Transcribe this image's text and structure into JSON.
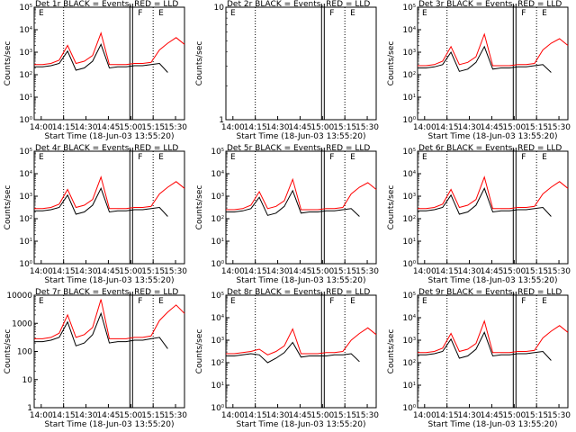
{
  "chart_data": [
    {
      "type": "line",
      "title": "Det 1r BLACK = Events, RED = LLD",
      "ylabel": "Counts/sec",
      "xlabel": "Start Time (18-Jun-03 13:55:20)",
      "xticks": [
        "14:00",
        "14:15",
        "14:30",
        "14:45",
        "15:00",
        "15:15",
        "15:30"
      ],
      "ylim_exp": [
        0,
        5
      ],
      "ytick_labels": [
        "10^0",
        "10^1",
        "10^2",
        "10^3",
        "10^4",
        "10^5"
      ],
      "dotted_x": [
        "14:15",
        "15:15"
      ],
      "solid_x": [
        "15:00"
      ],
      "markers": [
        "E",
        "F",
        "E"
      ],
      "series": [
        {
          "color": "#000000",
          "values": [
            2.35,
            2.35,
            2.4,
            2.5,
            3.05,
            2.2,
            2.3,
            2.6,
            3.35,
            2.3,
            2.35,
            2.35,
            2.4,
            2.4,
            2.45,
            2.5,
            2.1
          ]
        },
        {
          "color": "#ff0000",
          "values": [
            2.45,
            2.45,
            2.5,
            2.65,
            3.3,
            2.5,
            2.6,
            2.85,
            3.85,
            2.45,
            2.45,
            2.45,
            2.5,
            2.5,
            2.55,
            3.1,
            3.4,
            3.65,
            3.35
          ]
        }
      ]
    },
    {
      "type": "line",
      "title": "Det 2r BLACK = Events, RED = LLD",
      "ylabel": "Counts/sec",
      "xlabel": "Start Time (18-Jun-03 13:55:20)",
      "xticks": [
        "14:00",
        "14:15",
        "14:30",
        "14:45",
        "15:00",
        "15:15",
        "15:30"
      ],
      "ylim_exp": [
        0,
        1
      ],
      "ytick_labels": [
        "1",
        "10"
      ],
      "dotted_x": [
        "14:15",
        "15:15"
      ],
      "solid_x": [
        "15:00"
      ],
      "markers": [
        "E",
        "F",
        "E"
      ],
      "series": []
    },
    {
      "type": "line",
      "title": "Det 3r BLACK = Events, RED = LLD",
      "ylabel": "Counts/sec",
      "xlabel": "Start Time (18-Jun-03 13:55:20)",
      "xticks": [
        "14:00",
        "14:15",
        "14:30",
        "14:45",
        "15:00",
        "15:15",
        "15:30"
      ],
      "ylim_exp": [
        0,
        5
      ],
      "ytick_labels": [
        "10^0",
        "10^1",
        "10^2",
        "10^3",
        "10^4",
        "10^5"
      ],
      "dotted_x": [
        "14:15",
        "15:15"
      ],
      "solid_x": [
        "15:00"
      ],
      "markers": [
        "E",
        "F",
        "E"
      ],
      "series": [
        {
          "color": "#000000",
          "values": [
            2.3,
            2.3,
            2.35,
            2.45,
            3.0,
            2.15,
            2.25,
            2.55,
            3.25,
            2.25,
            2.3,
            2.3,
            2.35,
            2.35,
            2.4,
            2.45,
            2.1
          ]
        },
        {
          "color": "#ff0000",
          "values": [
            2.4,
            2.4,
            2.45,
            2.6,
            3.25,
            2.45,
            2.55,
            2.8,
            3.8,
            2.4,
            2.4,
            2.4,
            2.45,
            2.45,
            2.5,
            3.1,
            3.4,
            3.6,
            3.3
          ]
        }
      ]
    },
    {
      "type": "line",
      "title": "Det 4r BLACK = Events, RED = LLD",
      "ylabel": "Counts/sec",
      "xlabel": "Start Time (18-Jun-03 13:55:20)",
      "xticks": [
        "14:00",
        "14:15",
        "14:30",
        "14:45",
        "15:00",
        "15:15",
        "15:30"
      ],
      "ylim_exp": [
        0,
        5
      ],
      "ytick_labels": [
        "10^0",
        "10^1",
        "10^2",
        "10^3",
        "10^4",
        "10^5"
      ],
      "dotted_x": [
        "14:15",
        "15:15"
      ],
      "solid_x": [
        "15:00"
      ],
      "markers": [
        "E",
        "F",
        "E"
      ],
      "series": [
        {
          "color": "#000000",
          "values": [
            2.35,
            2.35,
            2.4,
            2.5,
            3.05,
            2.2,
            2.3,
            2.6,
            3.35,
            2.3,
            2.35,
            2.35,
            2.4,
            2.4,
            2.45,
            2.5,
            2.1
          ]
        },
        {
          "color": "#ff0000",
          "values": [
            2.45,
            2.45,
            2.5,
            2.65,
            3.3,
            2.5,
            2.6,
            2.85,
            3.85,
            2.45,
            2.45,
            2.45,
            2.5,
            2.5,
            2.55,
            3.1,
            3.4,
            3.65,
            3.35
          ]
        }
      ]
    },
    {
      "type": "line",
      "title": "Det 5r BLACK = Events, RED = LLD",
      "ylabel": "Counts/sec",
      "xlabel": "Start Time (18-Jun-03 13:55:20)",
      "xticks": [
        "14:00",
        "14:15",
        "14:30",
        "14:45",
        "15:00",
        "15:15",
        "15:30"
      ],
      "ylim_exp": [
        0,
        5
      ],
      "ytick_labels": [
        "10^0",
        "10^1",
        "10^2",
        "10^3",
        "10^4",
        "10^5"
      ],
      "dotted_x": [
        "14:15",
        "15:15"
      ],
      "solid_x": [
        "15:00"
      ],
      "markers": [
        "E",
        "F",
        "E"
      ],
      "series": [
        {
          "color": "#000000",
          "values": [
            2.3,
            2.3,
            2.35,
            2.45,
            2.95,
            2.15,
            2.25,
            2.55,
            3.25,
            2.25,
            2.3,
            2.3,
            2.35,
            2.35,
            2.4,
            2.45,
            2.1
          ]
        },
        {
          "color": "#ff0000",
          "values": [
            2.4,
            2.4,
            2.45,
            2.6,
            3.2,
            2.45,
            2.55,
            2.8,
            3.75,
            2.4,
            2.4,
            2.4,
            2.45,
            2.45,
            2.5,
            3.1,
            3.4,
            3.6,
            3.3
          ]
        }
      ]
    },
    {
      "type": "line",
      "title": "Det 6r BLACK = Events, RED = LLD",
      "ylabel": "Counts/sec",
      "xlabel": "Start Time (18-Jun-03 13:55:20)",
      "xticks": [
        "14:00",
        "14:15",
        "14:30",
        "14:45",
        "15:00",
        "15:15",
        "15:30"
      ],
      "ylim_exp": [
        0,
        5
      ],
      "ytick_labels": [
        "10^0",
        "10^1",
        "10^2",
        "10^3",
        "10^4",
        "10^5"
      ],
      "dotted_x": [
        "14:15",
        "15:15"
      ],
      "solid_x": [
        "15:00"
      ],
      "markers": [
        "E",
        "F",
        "E"
      ],
      "series": [
        {
          "color": "#000000",
          "values": [
            2.35,
            2.35,
            2.4,
            2.5,
            3.05,
            2.2,
            2.3,
            2.6,
            3.35,
            2.3,
            2.35,
            2.35,
            2.4,
            2.4,
            2.45,
            2.5,
            2.1
          ]
        },
        {
          "color": "#ff0000",
          "values": [
            2.45,
            2.45,
            2.5,
            2.65,
            3.3,
            2.5,
            2.6,
            2.85,
            3.85,
            2.45,
            2.45,
            2.45,
            2.5,
            2.5,
            2.55,
            3.1,
            3.4,
            3.65,
            3.35
          ]
        }
      ]
    },
    {
      "type": "line",
      "title": "Det 7r BLACK = Events, RED = LLD",
      "ylabel": "Counts/sec",
      "xlabel": "Start Time (18-Jun-03 13:55:20)",
      "xticks": [
        "14:00",
        "14:15",
        "14:30",
        "14:45",
        "15:00",
        "15:15",
        "15:30"
      ],
      "ylim_exp": [
        0,
        4
      ],
      "ytick_labels": [
        "1",
        "10",
        "100",
        "1000",
        "10000"
      ],
      "dotted_x": [
        "14:15",
        "15:15"
      ],
      "solid_x": [
        "15:00"
      ],
      "markers": [
        "E",
        "F",
        "E"
      ],
      "series": [
        {
          "color": "#000000",
          "values": [
            2.35,
            2.35,
            2.4,
            2.5,
            3.05,
            2.2,
            2.3,
            2.6,
            3.35,
            2.3,
            2.35,
            2.35,
            2.4,
            2.4,
            2.45,
            2.5,
            2.1
          ]
        },
        {
          "color": "#ff0000",
          "values": [
            2.45,
            2.45,
            2.5,
            2.65,
            3.3,
            2.5,
            2.6,
            2.85,
            3.85,
            2.45,
            2.45,
            2.45,
            2.5,
            2.5,
            2.55,
            3.1,
            3.4,
            3.65,
            3.35
          ]
        }
      ]
    },
    {
      "type": "line",
      "title": "Det 8r BLACK = Events, RED = LLD",
      "ylabel": "Counts/sec",
      "xlabel": "Start Time (18-Jun-03 13:55:20)",
      "xticks": [
        "14:00",
        "14:15",
        "14:30",
        "14:45",
        "15:00",
        "15:15",
        "15:30"
      ],
      "ylim_exp": [
        0,
        5
      ],
      "ytick_labels": [
        "10^0",
        "10^1",
        "10^2",
        "10^3",
        "10^4",
        "10^5"
      ],
      "dotted_x": [
        "14:15",
        "15:15"
      ],
      "solid_x": [
        "15:00"
      ],
      "markers": [
        "E",
        "F",
        "E"
      ],
      "series": [
        {
          "color": "#000000",
          "values": [
            2.3,
            2.3,
            2.35,
            2.4,
            2.35,
            2.0,
            2.2,
            2.45,
            2.9,
            2.25,
            2.3,
            2.3,
            2.3,
            2.35,
            2.35,
            2.4,
            2.05
          ]
        },
        {
          "color": "#ff0000",
          "values": [
            2.4,
            2.4,
            2.45,
            2.5,
            2.6,
            2.35,
            2.5,
            2.75,
            3.5,
            2.4,
            2.4,
            2.4,
            2.45,
            2.45,
            2.5,
            3.0,
            3.3,
            3.55,
            3.25
          ]
        }
      ]
    },
    {
      "type": "line",
      "title": "Det 9r BLACK = Events, RED = LLD",
      "ylabel": "Counts/sec",
      "xlabel": "Start Time (18-Jun-03 13:55:20)",
      "xticks": [
        "14:00",
        "14:15",
        "14:30",
        "14:45",
        "15:00",
        "15:15",
        "15:30"
      ],
      "ylim_exp": [
        0,
        5
      ],
      "ytick_labels": [
        "10^0",
        "10^1",
        "10^2",
        "10^3",
        "10^4",
        "10^5"
      ],
      "dotted_x": [
        "14:15",
        "15:15"
      ],
      "solid_x": [
        "15:00"
      ],
      "markers": [
        "E",
        "F",
        "E"
      ],
      "series": [
        {
          "color": "#000000",
          "values": [
            2.35,
            2.35,
            2.4,
            2.5,
            3.05,
            2.2,
            2.3,
            2.6,
            3.35,
            2.3,
            2.35,
            2.35,
            2.4,
            2.4,
            2.45,
            2.5,
            2.1
          ]
        },
        {
          "color": "#ff0000",
          "values": [
            2.45,
            2.45,
            2.5,
            2.65,
            3.3,
            2.5,
            2.6,
            2.85,
            3.85,
            2.45,
            2.45,
            2.45,
            2.5,
            2.5,
            2.55,
            3.1,
            3.4,
            3.65,
            3.35
          ]
        }
      ]
    }
  ]
}
